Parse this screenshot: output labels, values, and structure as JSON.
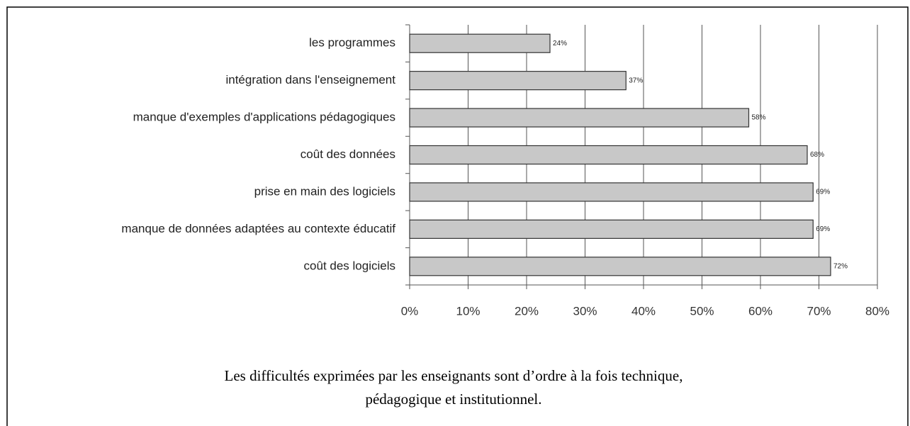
{
  "chart_data": {
    "type": "bar",
    "orientation": "horizontal",
    "categories": [
      "les programmes",
      "intégration dans l'enseignement",
      "manque d'exemples d'applications pédagogiques",
      "coût des données",
      "prise en main des logiciels",
      "manque de données adaptées au contexte éducatif",
      "coût des logiciels"
    ],
    "values": [
      24,
      37,
      58,
      68,
      69,
      69,
      72
    ],
    "value_labels": [
      "24%",
      "37%",
      "58%",
      "68%",
      "69%",
      "69%",
      "72%"
    ],
    "color": "#c8c8c8",
    "xlim": [
      0,
      80
    ],
    "xticks": [
      {
        "value": 0,
        "label": "0%"
      },
      {
        "value": 10,
        "label": "10%"
      },
      {
        "value": 20,
        "label": "20%"
      },
      {
        "value": 30,
        "label": "30%"
      },
      {
        "value": 40,
        "label": "40%"
      },
      {
        "value": 50,
        "label": "50%"
      },
      {
        "value": 60,
        "label": "60%"
      },
      {
        "value": 70,
        "label": "70%"
      },
      {
        "value": 80,
        "label": "80%"
      }
    ],
    "grid": true,
    "caption": [
      "Les difficultés exprimées par les enseignants sont d’ordre à la fois technique,",
      "pédagogique et institutionnel."
    ]
  }
}
